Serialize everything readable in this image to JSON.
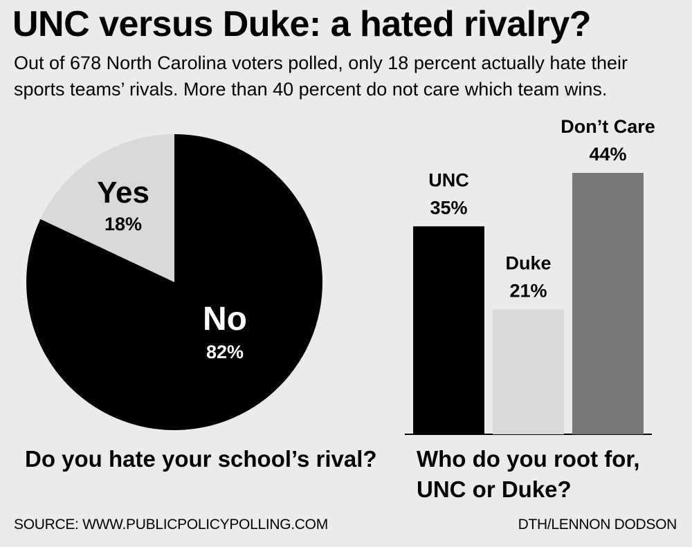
{
  "header": {
    "title": "UNC versus Duke: a hated rivalry?",
    "subtitle_line1": "Out of 678 North Carolina voters polled, only 18 percent actually hate their",
    "subtitle_line2": "sports teams’ rivals. More than 40 percent do not care which team wins."
  },
  "chart_data": [
    {
      "type": "pie",
      "title": "Do you hate your school’s rival?",
      "slices": [
        {
          "label": "Yes",
          "value": 18,
          "value_label": "18%",
          "color": "#d9d9d9"
        },
        {
          "label": "No",
          "value": 82,
          "value_label": "82%",
          "color": "#000000"
        }
      ]
    },
    {
      "type": "bar",
      "title_line1": "Who do you root for,",
      "title_line2": "UNC or Duke?",
      "categories": [
        "UNC",
        "Duke",
        "Don’t Care"
      ],
      "values": [
        35,
        21,
        44
      ],
      "value_labels": [
        "35%",
        "21%",
        "44%"
      ],
      "colors": [
        "#000000",
        "#d9d9d9",
        "#777777"
      ]
    }
  ],
  "footer": {
    "source": "SOURCE: WWW.PUBLICPOLICYPOLLING.COM",
    "credit": "DTH/LENNON DODSON"
  }
}
